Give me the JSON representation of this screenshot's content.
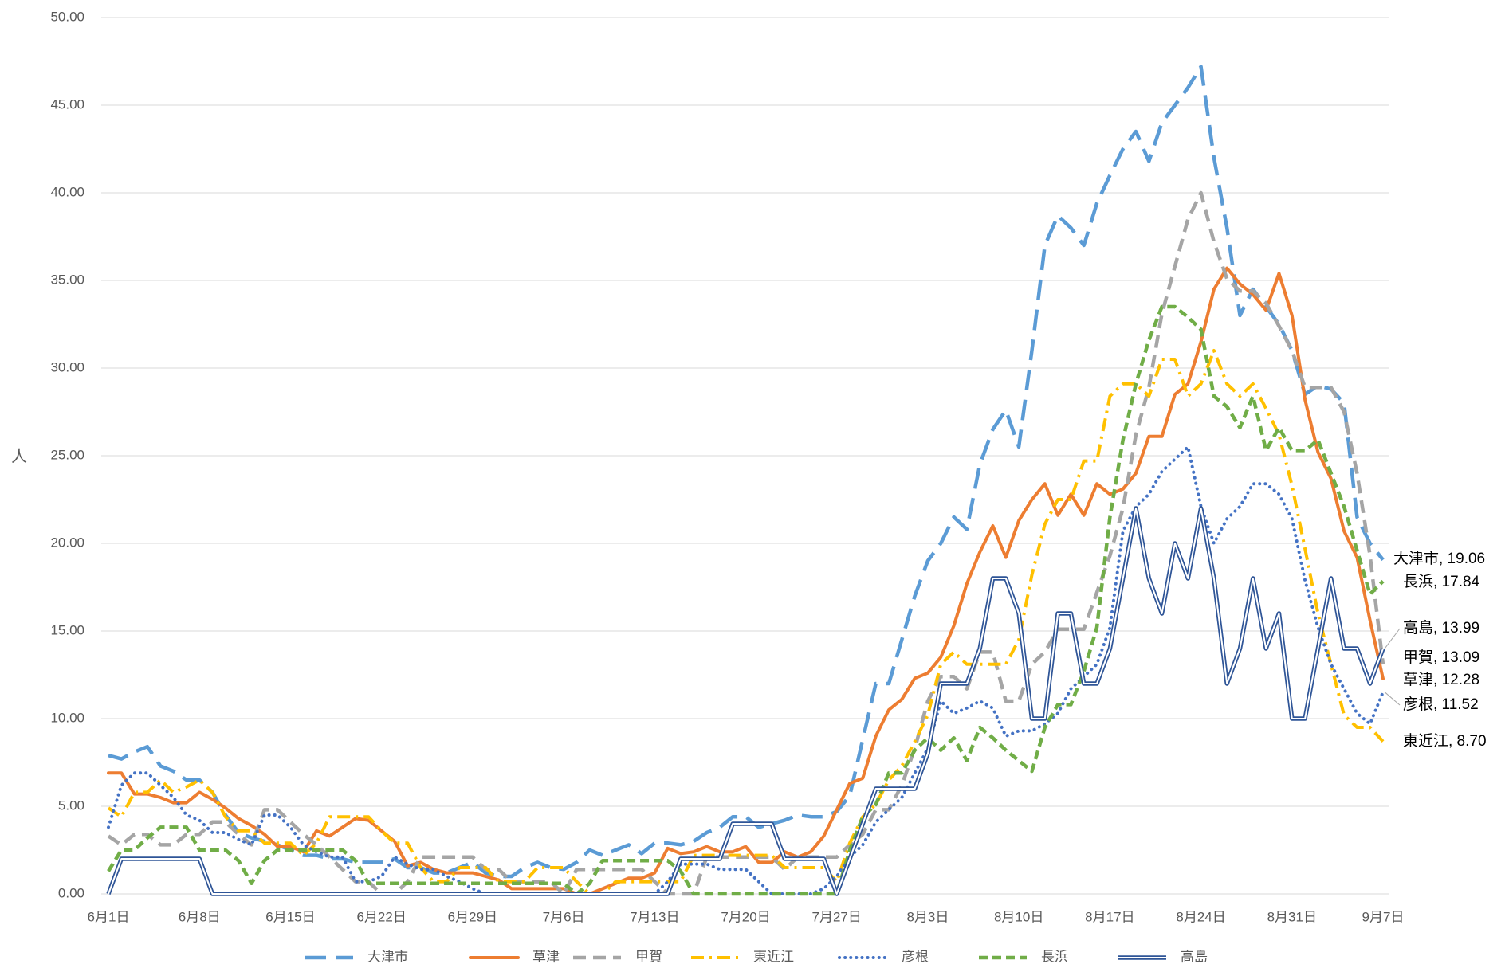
{
  "chart_data": {
    "type": "line",
    "y_label": "人",
    "categories": [
      "6月1日",
      null,
      null,
      null,
      null,
      null,
      null,
      "6月8日",
      null,
      null,
      null,
      null,
      null,
      null,
      "6月15日",
      null,
      null,
      null,
      null,
      null,
      null,
      "6月22日",
      null,
      null,
      null,
      null,
      null,
      null,
      "6月29日",
      null,
      null,
      null,
      null,
      null,
      null,
      "7月6日",
      null,
      null,
      null,
      null,
      null,
      null,
      "7月13日",
      null,
      null,
      null,
      null,
      null,
      null,
      "7月20日",
      null,
      null,
      null,
      null,
      null,
      null,
      "7月27日",
      null,
      null,
      null,
      null,
      null,
      null,
      "8月3日",
      null,
      null,
      null,
      null,
      null,
      null,
      "8月10日",
      null,
      null,
      null,
      null,
      null,
      null,
      "8月17日",
      null,
      null,
      null,
      null,
      null,
      null,
      "8月24日",
      null,
      null,
      null,
      null,
      null,
      null,
      "8月31日",
      null,
      null,
      null,
      null,
      null,
      null,
      "9月7日"
    ],
    "ylim": [
      0,
      50
    ],
    "yticks": [
      {
        "value": 0,
        "label": "0.00"
      },
      {
        "value": 5,
        "label": "5.00"
      },
      {
        "value": 10,
        "label": "10.00"
      },
      {
        "value": 15,
        "label": "15.00"
      },
      {
        "value": 20,
        "label": "20.00"
      },
      {
        "value": 25,
        "label": "25.00"
      },
      {
        "value": 30,
        "label": "30.00"
      },
      {
        "value": 35,
        "label": "35.00"
      },
      {
        "value": 40,
        "label": "40.00"
      },
      {
        "value": 45,
        "label": "45.00"
      },
      {
        "value": 50,
        "label": "50.00"
      }
    ],
    "grid": true,
    "legend": "bottom",
    "series": [
      {
        "name": "大津市",
        "color": "#5B9BD5",
        "line_style": "long-dash",
        "end_label": "大津市, 19.06",
        "values": [
          7.9,
          7.7,
          8.1,
          8.4,
          7.3,
          7.0,
          6.5,
          6.5,
          5.8,
          4.5,
          3.5,
          3.2,
          3.0,
          2.8,
          2.5,
          2.2,
          2.2,
          2.0,
          2.0,
          1.8,
          1.8,
          1.8,
          2.0,
          1.5,
          1.5,
          1.2,
          1.2,
          1.5,
          1.8,
          1.2,
          1.0,
          1.0,
          1.5,
          1.8,
          1.5,
          1.4,
          1.8,
          2.5,
          2.2,
          2.5,
          2.8,
          2.3,
          2.9,
          2.9,
          2.8,
          3.0,
          3.5,
          3.8,
          4.4,
          4.4,
          3.8,
          4.0,
          4.2,
          4.5,
          4.4,
          4.4,
          4.7,
          5.6,
          8.8,
          12.0,
          12.0,
          14.5,
          17.0,
          19.0,
          20.0,
          21.5,
          20.8,
          24.5,
          26.5,
          27.6,
          25.5,
          31.0,
          37.0,
          38.7,
          38.0,
          37.0,
          39.4,
          41.0,
          42.5,
          43.5,
          41.8,
          44.0,
          45.0,
          46.0,
          47.2,
          42.0,
          38.0,
          33.0,
          34.5,
          33.5,
          32.5,
          31.0,
          28.5,
          29.0,
          28.8,
          28.0,
          21.5,
          20.0,
          19.06
        ]
      },
      {
        "name": "草津",
        "color": "#ED7D31",
        "line_style": "solid",
        "end_label": "草津, 12.28",
        "values": [
          6.9,
          6.9,
          5.7,
          5.7,
          5.5,
          5.2,
          5.2,
          5.8,
          5.4,
          4.9,
          4.3,
          3.9,
          3.4,
          2.7,
          2.7,
          2.4,
          3.6,
          3.3,
          3.8,
          4.3,
          4.2,
          3.6,
          3.0,
          1.6,
          1.8,
          1.4,
          1.2,
          1.2,
          1.2,
          1.0,
          0.8,
          0.3,
          0.3,
          0.3,
          0.3,
          0.3,
          0,
          0,
          0.3,
          0.6,
          0.9,
          0.9,
          1.2,
          2.6,
          2.3,
          2.4,
          2.7,
          2.4,
          2.4,
          2.7,
          1.8,
          1.8,
          2.4,
          2.1,
          2.4,
          3.3,
          4.8,
          6.3,
          6.6,
          9.0,
          10.5,
          11.1,
          12.3,
          12.6,
          13.5,
          15.3,
          17.7,
          19.5,
          21.0,
          19.2,
          21.3,
          22.5,
          23.4,
          21.6,
          22.8,
          21.6,
          23.4,
          22.8,
          23.1,
          24.0,
          26.1,
          26.1,
          28.5,
          29.1,
          31.5,
          34.5,
          35.7,
          34.8,
          34.2,
          33.3,
          35.4,
          33.0,
          28.2,
          25.2,
          23.7,
          20.7,
          19.2,
          15.6,
          12.28
        ]
      },
      {
        "name": "甲賀",
        "color": "#A5A5A5",
        "line_style": "dash",
        "end_label": "甲賀, 13.09",
        "values": [
          3.3,
          2.8,
          3.4,
          3.4,
          2.8,
          2.8,
          3.4,
          3.4,
          4.1,
          4.1,
          3.4,
          2.8,
          4.8,
          4.8,
          4.1,
          3.4,
          2.8,
          2.1,
          1.4,
          0.7,
          0.7,
          0,
          0,
          0.7,
          2.1,
          2.1,
          2.1,
          2.1,
          2.1,
          1.4,
          1.4,
          0.7,
          0.7,
          0.7,
          0.7,
          0,
          1.4,
          1.4,
          1.4,
          1.4,
          1.4,
          1.4,
          0.7,
          0,
          0,
          0,
          2.1,
          2.1,
          2.1,
          2.1,
          2.1,
          2.1,
          1.4,
          2.1,
          2.1,
          2.1,
          2.1,
          2.8,
          3.4,
          4.8,
          4.8,
          6.2,
          8.3,
          11.0,
          12.4,
          12.4,
          11.7,
          13.8,
          13.8,
          11.0,
          11.0,
          13.1,
          13.8,
          15.1,
          15.1,
          15.1,
          17.2,
          19.3,
          22.0,
          26.2,
          28.9,
          33.1,
          35.8,
          38.5,
          40.0,
          37.2,
          35.1,
          34.4,
          34.4,
          33.7,
          32.4,
          31.0,
          28.9,
          28.9,
          28.9,
          27.5,
          24.0,
          19.3,
          13.09
        ]
      },
      {
        "name": "東近江",
        "color": "#FFC000",
        "line_style": "dash-dot",
        "end_label": "東近江, 8.70",
        "values": [
          4.9,
          4.4,
          5.8,
          5.8,
          6.5,
          5.8,
          6.1,
          6.5,
          5.8,
          4.4,
          3.6,
          3.6,
          2.9,
          2.9,
          2.9,
          2.2,
          2.9,
          4.4,
          4.4,
          4.4,
          4.4,
          3.6,
          2.9,
          2.9,
          1.5,
          0.7,
          0.7,
          1.5,
          1.5,
          1.5,
          0.7,
          0.7,
          0.7,
          1.5,
          1.5,
          1.5,
          0.7,
          0,
          0,
          0.7,
          0.7,
          0.7,
          0.7,
          0.7,
          0.7,
          2.2,
          2.2,
          2.2,
          2.2,
          2.2,
          2.2,
          2.2,
          1.5,
          1.5,
          1.5,
          1.5,
          0.7,
          2.9,
          4.4,
          5.1,
          6.5,
          7.3,
          8.7,
          10.2,
          13.1,
          13.8,
          13.1,
          13.1,
          13.1,
          13.1,
          14.5,
          18.2,
          21.1,
          22.5,
          22.5,
          24.7,
          24.7,
          28.4,
          29.1,
          29.1,
          28.4,
          30.5,
          30.5,
          28.4,
          29.1,
          31.0,
          29.1,
          28.4,
          29.1,
          27.7,
          26.2,
          23.3,
          19.7,
          16.0,
          13.1,
          10.2,
          9.5,
          9.5,
          8.7
        ]
      },
      {
        "name": "彦根",
        "color": "#4472C4",
        "line_style": "dot",
        "end_label": "彦根, 11.52",
        "values": [
          3.8,
          6.2,
          6.9,
          6.9,
          6.2,
          5.5,
          4.5,
          4.2,
          3.5,
          3.5,
          3.1,
          2.8,
          4.5,
          4.5,
          3.8,
          2.8,
          2.4,
          2.1,
          2.1,
          0.7,
          0.7,
          1.0,
          2.1,
          1.7,
          1.4,
          1.4,
          1.0,
          0.7,
          0.3,
          0,
          0,
          0,
          0,
          0,
          0,
          0,
          0,
          0,
          0,
          0,
          0,
          0,
          0,
          0.7,
          1.7,
          1.7,
          1.7,
          1.4,
          1.4,
          1.4,
          0.7,
          0,
          0,
          0,
          0,
          0.3,
          1.0,
          2.1,
          2.8,
          4.1,
          4.8,
          5.5,
          6.9,
          8.3,
          11.0,
          10.3,
          10.6,
          11.0,
          10.6,
          9.0,
          9.3,
          9.3,
          9.7,
          10.3,
          11.7,
          12.4,
          13.1,
          15.2,
          20.7,
          22.1,
          22.8,
          24.1,
          24.8,
          25.5,
          22.1,
          20.0,
          21.4,
          22.1,
          23.4,
          23.4,
          22.8,
          21.4,
          17.9,
          15.2,
          13.1,
          11.7,
          10.3,
          9.7,
          11.52
        ]
      },
      {
        "name": "長浜",
        "color": "#70AD47",
        "line_style": "short-dash",
        "end_label": "長浜, 17.84",
        "values": [
          1.3,
          2.5,
          2.5,
          3.2,
          3.8,
          3.8,
          3.8,
          2.5,
          2.5,
          2.5,
          1.9,
          0.6,
          1.9,
          2.5,
          2.5,
          2.5,
          2.5,
          2.5,
          2.5,
          1.9,
          0.6,
          0.6,
          0.6,
          0.6,
          0.6,
          0.6,
          0.6,
          0.6,
          0.6,
          0.6,
          0.6,
          0.6,
          0.6,
          0.6,
          0.6,
          0.6,
          0,
          0.6,
          1.9,
          1.9,
          1.9,
          1.9,
          1.9,
          1.9,
          1.3,
          0,
          0,
          0,
          0,
          0,
          0,
          0,
          0,
          0,
          0,
          0,
          0,
          2.5,
          4.4,
          5.1,
          6.9,
          6.9,
          8.2,
          8.9,
          8.2,
          8.9,
          7.6,
          9.5,
          8.9,
          8.2,
          7.6,
          7.0,
          9.5,
          10.8,
          10.8,
          12.7,
          15.2,
          21.5,
          25.9,
          29.1,
          31.6,
          33.5,
          33.5,
          32.9,
          32.2,
          28.4,
          27.8,
          26.6,
          28.4,
          25.3,
          26.6,
          25.3,
          25.3,
          25.9,
          24.0,
          22.1,
          19.6,
          17.1,
          17.84
        ]
      },
      {
        "name": "高島",
        "color": "#2F5597",
        "line_style": "double",
        "end_label": "高島, 13.99",
        "values": [
          0,
          2,
          2,
          2,
          2,
          2,
          2,
          2,
          0,
          0,
          0,
          0,
          0,
          0,
          0,
          0,
          0,
          0,
          0,
          0,
          0,
          0,
          0,
          0,
          0,
          0,
          0,
          0,
          0,
          0,
          0,
          0,
          0,
          0,
          0,
          0,
          0,
          0,
          0,
          0,
          0,
          0,
          0,
          0,
          2,
          2,
          2,
          2,
          4,
          4,
          4,
          4,
          2,
          2,
          2,
          2,
          0,
          2,
          4,
          6,
          6,
          6,
          6,
          8,
          12,
          12,
          12,
          14,
          18,
          18,
          16,
          10,
          10,
          16,
          16,
          12,
          12,
          14,
          18,
          22,
          18,
          16,
          20,
          18,
          22,
          18,
          12,
          14,
          18,
          14,
          16,
          10,
          10,
          14,
          18,
          14,
          14,
          12,
          13.99
        ]
      }
    ]
  }
}
